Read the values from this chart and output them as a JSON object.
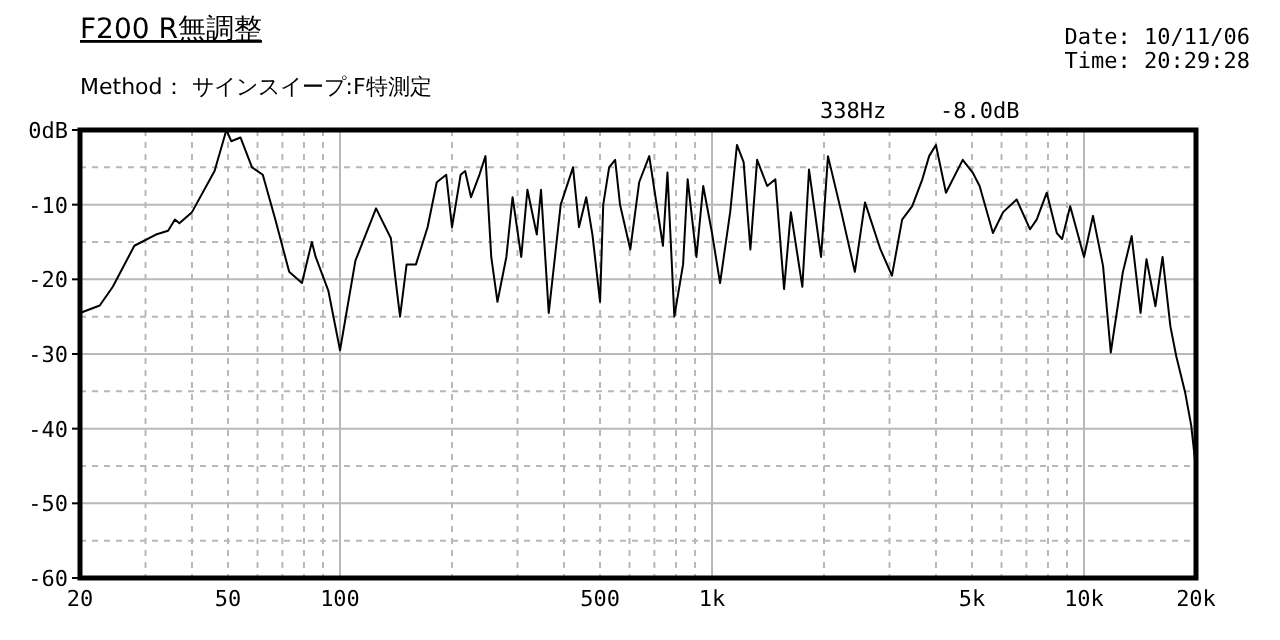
{
  "chart_data": {
    "type": "line",
    "title": "F200 R無調整",
    "subtitle": "Method： サインスイープ:F特測定",
    "annotations": [
      "338Hz",
      "-8.0dB",
      "Date: 10/11/06",
      "Time: 20:29:28"
    ],
    "log": "x",
    "grid": true,
    "marker": "none",
    "line_style": "solid",
    "xlim": [
      20,
      20000
    ],
    "ylim": [
      -60,
      0
    ],
    "xticks": [
      20,
      {
        "value": 30,
        "label": null
      },
      {
        "value": 40,
        "label": null
      },
      50,
      {
        "value": 60,
        "label": null
      },
      {
        "value": 70,
        "label": null
      },
      {
        "value": 80,
        "label": null
      },
      {
        "value": 90,
        "label": null
      },
      100,
      {
        "value": 200,
        "label": null
      },
      {
        "value": 300,
        "label": null
      },
      {
        "value": 400,
        "label": null
      },
      500,
      {
        "value": 600,
        "label": null
      },
      {
        "value": 700,
        "label": null
      },
      {
        "value": 800,
        "label": null
      },
      {
        "value": 900,
        "label": null
      },
      {
        "value": 1000,
        "label": "1k"
      },
      {
        "value": 2000,
        "label": null
      },
      {
        "value": 3000,
        "label": null
      },
      {
        "value": 4000,
        "label": null
      },
      {
        "value": 5000,
        "label": "5k"
      },
      {
        "value": 6000,
        "label": null
      },
      {
        "value": 7000,
        "label": null
      },
      {
        "value": 8000,
        "label": null
      },
      {
        "value": 9000,
        "label": null
      },
      {
        "value": 10000,
        "label": "10k"
      },
      {
        "value": 20000,
        "label": "20k"
      }
    ],
    "yticks": [
      {
        "value": 0,
        "label": "0dB"
      },
      {
        "value": -5,
        "label": null
      },
      -10,
      {
        "value": -15,
        "label": null
      },
      -20,
      {
        "value": -25,
        "label": null
      },
      -30,
      {
        "value": -35,
        "label": null
      },
      -40,
      {
        "value": -45,
        "label": null
      },
      -50,
      {
        "value": -55,
        "label": null
      },
      -60
    ],
    "series": [
      {
        "color": "#000000",
        "x": [
          20,
          22.6,
          24.5,
          28,
          32,
          34.5,
          36,
          37,
          40,
          46,
          49.5,
          51,
          54,
          58,
          62,
          67,
          73,
          79,
          84,
          86,
          93,
          100,
          110,
          125,
          137,
          141,
          145,
          151,
          160,
          172,
          182,
          193,
          200,
          211,
          217,
          225,
          237,
          246,
          255,
          265,
          280,
          291,
          307,
          319,
          338,
          347,
          364,
          392,
          423,
          439,
          459,
          477,
          500,
          510,
          529,
          549,
          566,
          603,
          637,
          678,
          738,
          759,
          792,
          836,
          860,
          908,
          947,
          1000,
          1051,
          1119,
          1167,
          1216,
          1268,
          1322,
          1407,
          1480,
          1562,
          1629,
          1749,
          1823,
          1964,
          2050,
          2227,
          2421,
          2578,
          2837,
          3046,
          3244,
          3453,
          3676,
          3834,
          3998,
          4255,
          4720,
          5020,
          5240,
          5690,
          6060,
          6590,
          7160,
          7460,
          7940,
          8450,
          8730,
          9180,
          10000,
          10570,
          11250,
          11800,
          12710,
          13430,
          14190,
          14720,
          15560,
          16260,
          17070,
          17700,
          18710,
          19420,
          20000
        ],
        "values": [
          -24.5,
          -23.5,
          -21,
          -15.5,
          -14,
          -13.5,
          -12,
          -12.5,
          -11,
          -5.5,
          0,
          -1.5,
          -1,
          -5,
          -6,
          -12,
          -19,
          -20.5,
          -15,
          -17,
          -21.5,
          -29.5,
          -17.5,
          -10.5,
          -14.5,
          -20,
          -25,
          -18,
          -18,
          -13,
          -7,
          -6,
          -13,
          -6,
          -5.5,
          -9,
          -6,
          -3.5,
          -17,
          -23,
          -17,
          -9,
          -17,
          -8,
          -14,
          -8,
          -24.5,
          -10,
          -5,
          -13,
          -9,
          -14,
          -23,
          -10,
          -5,
          -4,
          -10,
          -16,
          -7,
          -3.5,
          -15.5,
          -5.7,
          -25,
          -18,
          -6.6,
          -17,
          -7.5,
          -13.8,
          -20.5,
          -11,
          -2,
          -4.3,
          -16,
          -4,
          -7.5,
          -6.6,
          -21.3,
          -11,
          -21,
          -5.3,
          -17,
          -3.5,
          -11,
          -19,
          -9.7,
          -16,
          -19.5,
          -12,
          -10.2,
          -6.6,
          -3.5,
          -2,
          -8.4,
          -4,
          -5.7,
          -7.5,
          -13.8,
          -11,
          -9.3,
          -13.3,
          -12,
          -8.4,
          -13.8,
          -14.6,
          -10.2,
          -17,
          -11.5,
          -18.2,
          -29.8,
          -19.1,
          -14.2,
          -24.5,
          -17.3,
          -23.6,
          -17,
          -26.3,
          -30.3,
          -35.2,
          -39.6,
          -45.4
        ]
      }
    ]
  }
}
